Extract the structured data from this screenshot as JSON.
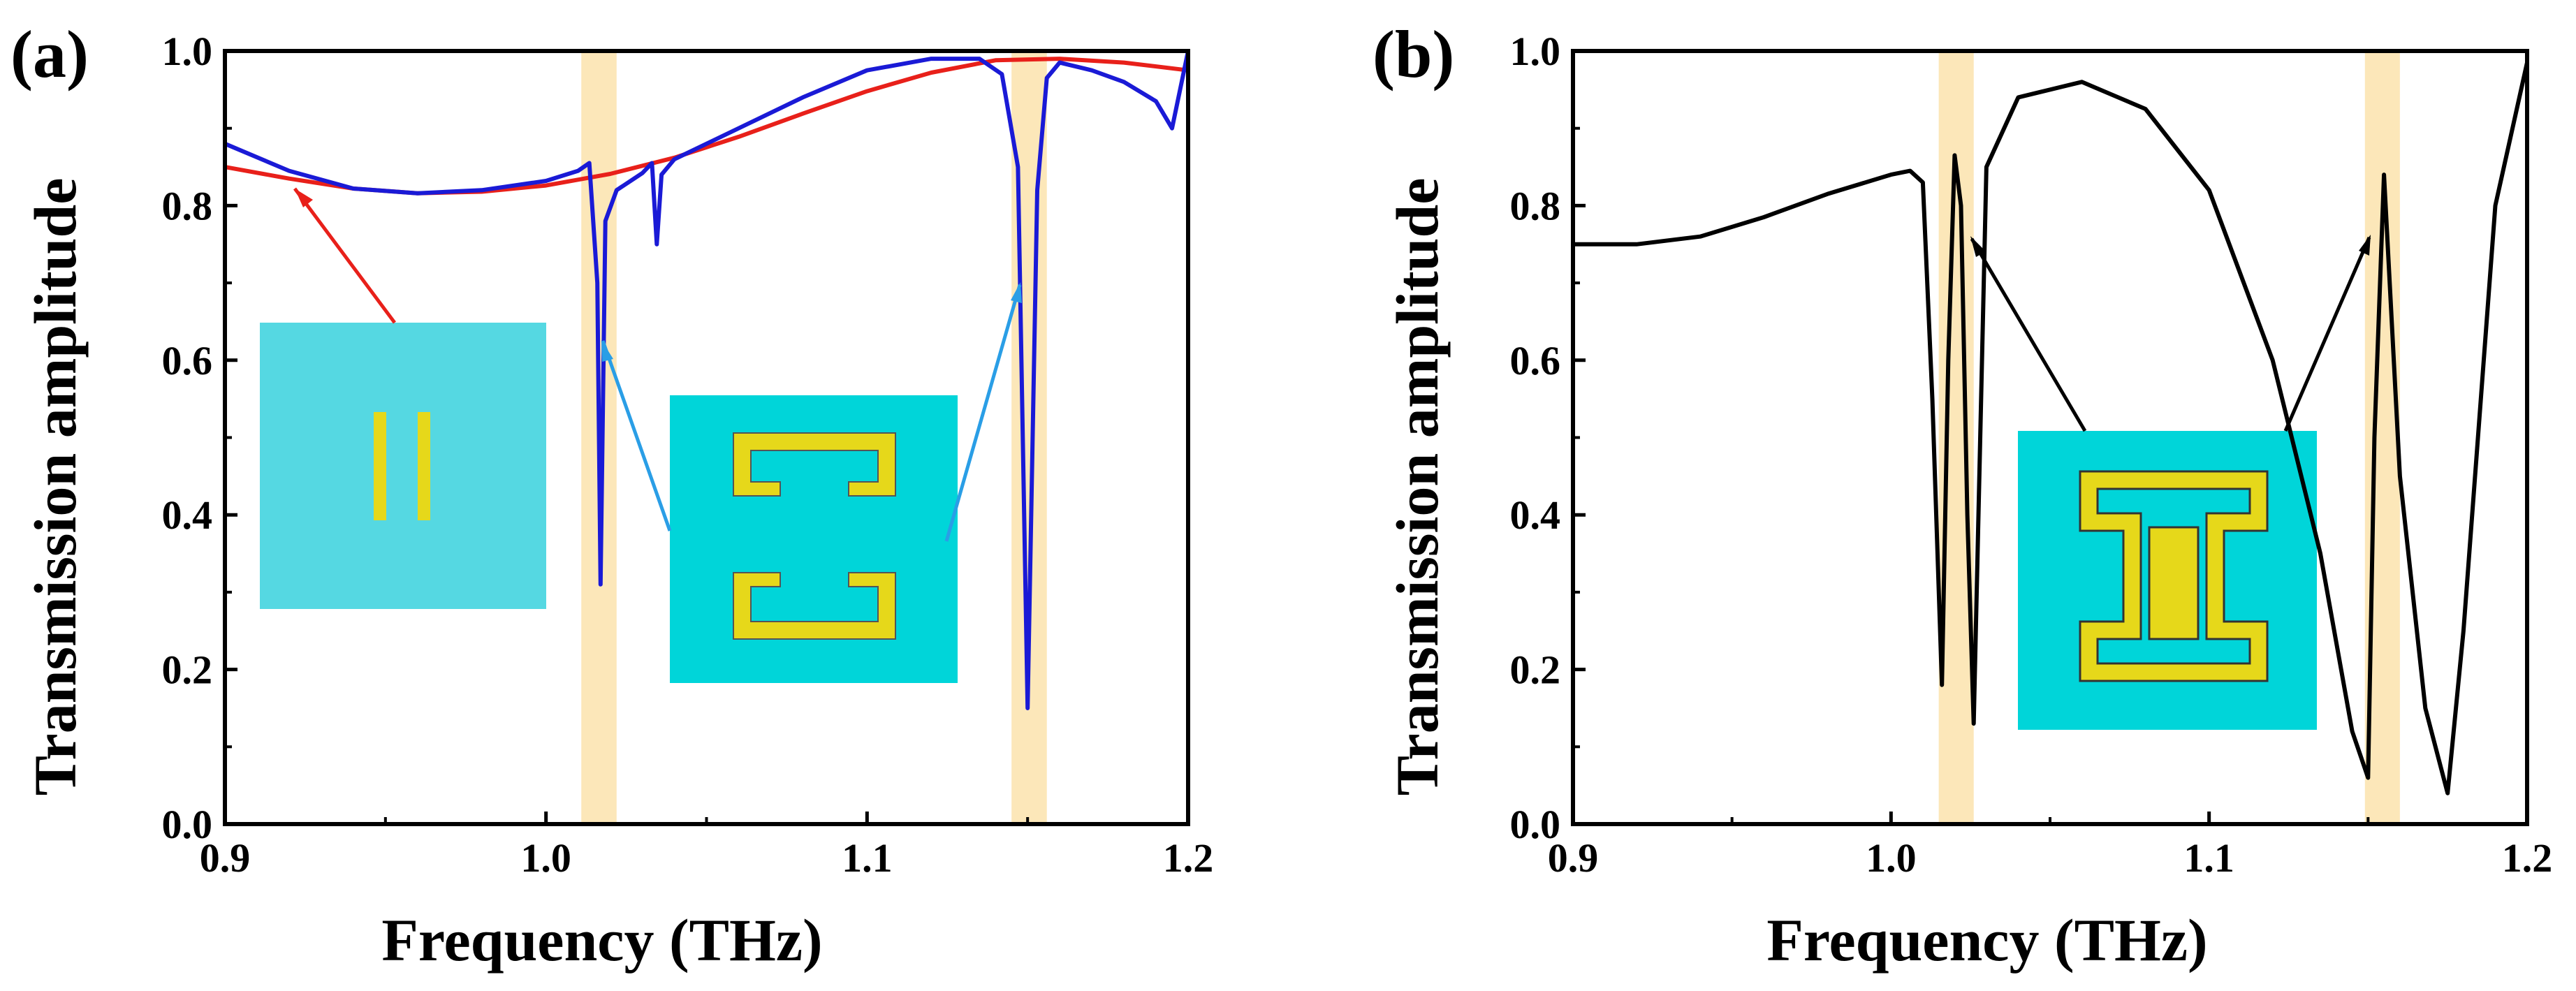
{
  "chart_data": [
    {
      "panel_label": "(a)",
      "type": "line",
      "xlabel": "Frequency (THz)",
      "ylabel": "Transmission amplitude",
      "xlim": [
        0.9,
        1.2
      ],
      "ylim": [
        0.0,
        1.0
      ],
      "xticks": [
        "0.9",
        "1.0",
        "1.1",
        "1.2"
      ],
      "yticks": [
        "0.0",
        "0.2",
        "0.4",
        "0.6",
        "0.8",
        "1.0"
      ],
      "highlight_bands": [
        [
          1.011,
          1.022
        ],
        [
          1.145,
          1.156
        ]
      ],
      "series": [
        {
          "name": "two-bar structure",
          "color": "#e8201a",
          "x": [
            0.9,
            0.92,
            0.94,
            0.96,
            0.98,
            1.0,
            1.02,
            1.04,
            1.06,
            1.08,
            1.1,
            1.12,
            1.14,
            1.16,
            1.18,
            1.2
          ],
          "y": [
            0.85,
            0.835,
            0.822,
            0.816,
            0.818,
            0.826,
            0.841,
            0.862,
            0.889,
            0.919,
            0.948,
            0.972,
            0.988,
            0.99,
            0.985,
            0.975
          ]
        },
        {
          "name": "two-C structure",
          "color": "#1a1ad6",
          "x": [
            0.9,
            0.92,
            0.94,
            0.96,
            0.98,
            1.0,
            1.01,
            1.0135,
            1.016,
            1.017,
            1.0185,
            1.022,
            1.03,
            1.033,
            1.0345,
            1.036,
            1.04,
            1.06,
            1.08,
            1.1,
            1.12,
            1.135,
            1.142,
            1.147,
            1.15,
            1.153,
            1.156,
            1.16,
            1.17,
            1.18,
            1.19,
            1.195,
            1.198,
            1.2
          ],
          "y": [
            0.88,
            0.845,
            0.822,
            0.816,
            0.82,
            0.832,
            0.845,
            0.855,
            0.7,
            0.31,
            0.78,
            0.82,
            0.842,
            0.855,
            0.75,
            0.84,
            0.86,
            0.9,
            0.94,
            0.975,
            0.99,
            0.99,
            0.97,
            0.85,
            0.15,
            0.82,
            0.965,
            0.985,
            0.975,
            0.96,
            0.935,
            0.9,
            0.96,
            1.0
          ]
        }
      ],
      "insets": [
        {
          "name": "two-bar unit cell"
        },
        {
          "name": "two-C unit cell"
        }
      ]
    },
    {
      "panel_label": "(b)",
      "type": "line",
      "xlabel": "Frequency (THz)",
      "ylabel": "Transmission amplitude",
      "xlim": [
        0.9,
        1.2
      ],
      "ylim": [
        0.0,
        1.0
      ],
      "xticks": [
        "0.9",
        "1.0",
        "1.1",
        "1.2"
      ],
      "yticks": [
        "0.0",
        "0.2",
        "0.4",
        "0.6",
        "0.8",
        "1.0"
      ],
      "highlight_bands": [
        [
          1.015,
          1.026
        ],
        [
          1.149,
          1.16
        ]
      ],
      "series": [
        {
          "name": "I-shaped structure",
          "color": "#000000",
          "x": [
            0.9,
            0.92,
            0.94,
            0.96,
            0.98,
            1.0,
            1.006,
            1.01,
            1.013,
            1.016,
            1.018,
            1.02,
            1.022,
            1.024,
            1.026,
            1.03,
            1.04,
            1.06,
            1.08,
            1.1,
            1.12,
            1.135,
            1.145,
            1.15,
            1.152,
            1.155,
            1.16,
            1.168,
            1.175,
            1.18,
            1.19,
            1.2
          ],
          "y": [
            0.75,
            0.75,
            0.76,
            0.785,
            0.815,
            0.84,
            0.845,
            0.83,
            0.55,
            0.18,
            0.6,
            0.865,
            0.8,
            0.4,
            0.13,
            0.85,
            0.94,
            0.96,
            0.925,
            0.82,
            0.6,
            0.35,
            0.12,
            0.06,
            0.5,
            0.84,
            0.45,
            0.15,
            0.04,
            0.25,
            0.8,
            0.985
          ]
        }
      ],
      "insets": [
        {
          "name": "I-shaped unit cell"
        }
      ]
    }
  ]
}
